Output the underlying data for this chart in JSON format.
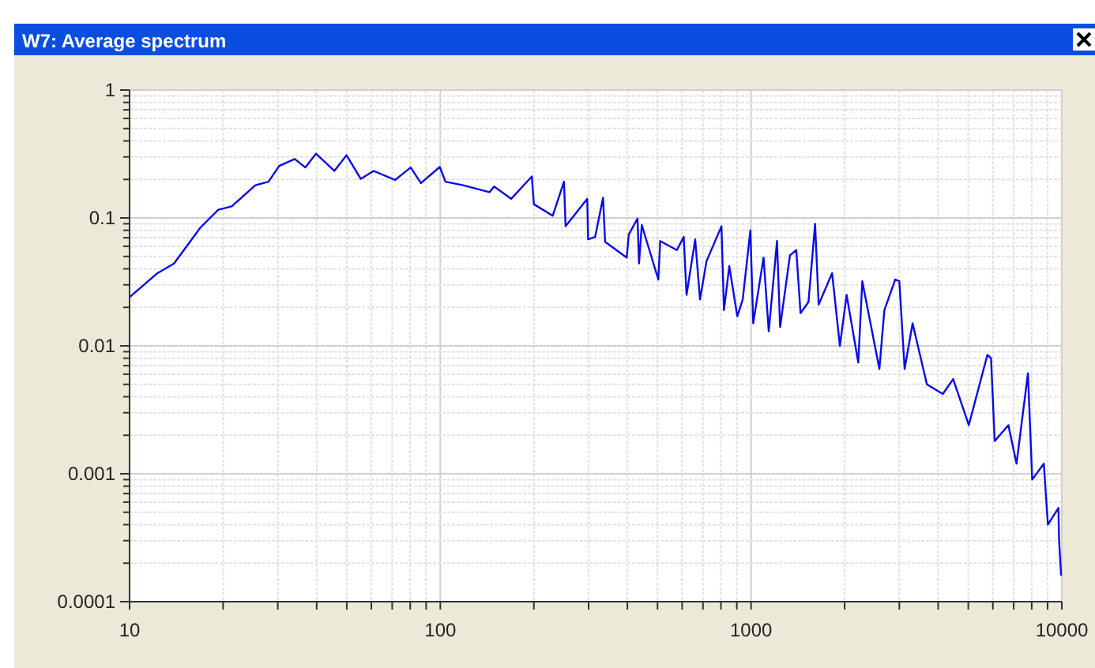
{
  "chart_data": {
    "type": "line",
    "title": "W7: Average spectrum",
    "log": "xy",
    "grid": true,
    "line_style": "solid",
    "marker": "none",
    "xlim": [
      10,
      10000
    ],
    "ylim": [
      0.0001,
      1
    ],
    "xticks": [
      10,
      {
        "value": 20,
        "label": null
      },
      {
        "value": 30,
        "label": null
      },
      {
        "value": 40,
        "label": null
      },
      {
        "value": 50,
        "label": null
      },
      {
        "value": 60,
        "label": null
      },
      {
        "value": 70,
        "label": null
      },
      {
        "value": 80,
        "label": null
      },
      {
        "value": 90,
        "label": null
      },
      100,
      {
        "value": 200,
        "label": null
      },
      {
        "value": 300,
        "label": null
      },
      {
        "value": 400,
        "label": null
      },
      {
        "value": 500,
        "label": null
      },
      {
        "value": 600,
        "label": null
      },
      {
        "value": 700,
        "label": null
      },
      {
        "value": 800,
        "label": null
      },
      {
        "value": 900,
        "label": null
      },
      1000,
      {
        "value": 2000,
        "label": null
      },
      {
        "value": 3000,
        "label": null
      },
      {
        "value": 4000,
        "label": null
      },
      {
        "value": 5000,
        "label": null
      },
      {
        "value": 6000,
        "label": null
      },
      {
        "value": 7000,
        "label": null
      },
      {
        "value": 8000,
        "label": null
      },
      {
        "value": 9000,
        "label": null
      },
      10000
    ],
    "yticks": [
      0.0001,
      {
        "value": 0.0002,
        "label": null
      },
      {
        "value": 0.0003,
        "label": null
      },
      {
        "value": 0.0004,
        "label": null
      },
      {
        "value": 0.0005,
        "label": null
      },
      {
        "value": 0.0006,
        "label": null
      },
      {
        "value": 0.0007,
        "label": null
      },
      {
        "value": 0.0008,
        "label": null
      },
      {
        "value": 0.0009,
        "label": null
      },
      0.001,
      {
        "value": 0.002,
        "label": null
      },
      {
        "value": 0.003,
        "label": null
      },
      {
        "value": 0.004,
        "label": null
      },
      {
        "value": 0.005,
        "label": null
      },
      {
        "value": 0.006,
        "label": null
      },
      {
        "value": 0.007,
        "label": null
      },
      {
        "value": 0.008,
        "label": null
      },
      {
        "value": 0.009,
        "label": null
      },
      0.01,
      {
        "value": 0.02,
        "label": null
      },
      {
        "value": 0.03,
        "label": null
      },
      {
        "value": 0.04,
        "label": null
      },
      {
        "value": 0.05,
        "label": null
      },
      {
        "value": 0.06,
        "label": null
      },
      {
        "value": 0.07,
        "label": null
      },
      {
        "value": 0.08,
        "label": null
      },
      {
        "value": 0.09,
        "label": null
      },
      0.1,
      {
        "value": 0.2,
        "label": null
      },
      {
        "value": 0.3,
        "label": null
      },
      {
        "value": 0.4,
        "label": null
      },
      {
        "value": 0.5,
        "label": null
      },
      {
        "value": 0.6,
        "label": null
      },
      {
        "value": 0.7,
        "label": null
      },
      {
        "value": 0.8,
        "label": null
      },
      {
        "value": 0.9,
        "label": null
      },
      1
    ],
    "series": [
      {
        "color": "#0a0ae6",
        "x": [
          10,
          12.3,
          13.9,
          16.9,
          19.3,
          21.3,
          25.4,
          28,
          30.3,
          34,
          36.8,
          39.8,
          45.6,
          49.9,
          55.5,
          61,
          71.5,
          80.3,
          86.6,
          99.6,
          103.9,
          118.5,
          144,
          149,
          169,
          197,
          200,
          230,
          250,
          253,
          297,
          299,
          315,
          334,
          339,
          398,
          404,
          431,
          436,
          445,
          503,
          510,
          577,
          607,
          620,
          661,
          685,
          719,
          803,
          818,
          851,
          903,
          940,
          995,
          1016,
          1097,
          1140,
          1212,
          1240,
          1334,
          1398,
          1443,
          1530,
          1607,
          1650,
          1823,
          1931,
          2030,
          2213,
          2280,
          2588,
          2685,
          2910,
          3000,
          3120,
          3310,
          3680,
          4140,
          4470,
          5020,
          5760,
          5920,
          6080,
          6730,
          7150,
          7780,
          8030,
          8750,
          9020,
          9750,
          9800,
          9950
        ],
        "values": [
          0.024,
          0.037,
          0.044,
          0.084,
          0.116,
          0.123,
          0.18,
          0.192,
          0.255,
          0.289,
          0.248,
          0.318,
          0.233,
          0.309,
          0.202,
          0.233,
          0.198,
          0.248,
          0.187,
          0.25,
          0.192,
          0.18,
          0.159,
          0.176,
          0.141,
          0.211,
          0.128,
          0.104,
          0.192,
          0.086,
          0.141,
          0.068,
          0.071,
          0.144,
          0.065,
          0.049,
          0.074,
          0.099,
          0.044,
          0.088,
          0.033,
          0.066,
          0.056,
          0.071,
          0.025,
          0.068,
          0.023,
          0.046,
          0.086,
          0.019,
          0.042,
          0.017,
          0.023,
          0.08,
          0.015,
          0.049,
          0.013,
          0.066,
          0.014,
          0.051,
          0.056,
          0.018,
          0.022,
          0.09,
          0.021,
          0.037,
          0.01,
          0.025,
          0.0074,
          0.032,
          0.0066,
          0.019,
          0.033,
          0.032,
          0.0066,
          0.015,
          0.005,
          0.0042,
          0.0055,
          0.0024,
          0.0085,
          0.008,
          0.0018,
          0.0024,
          0.0012,
          0.0061,
          0.0009,
          0.0012,
          0.0004,
          0.00054,
          0.0003,
          0.00016
        ]
      }
    ]
  }
}
